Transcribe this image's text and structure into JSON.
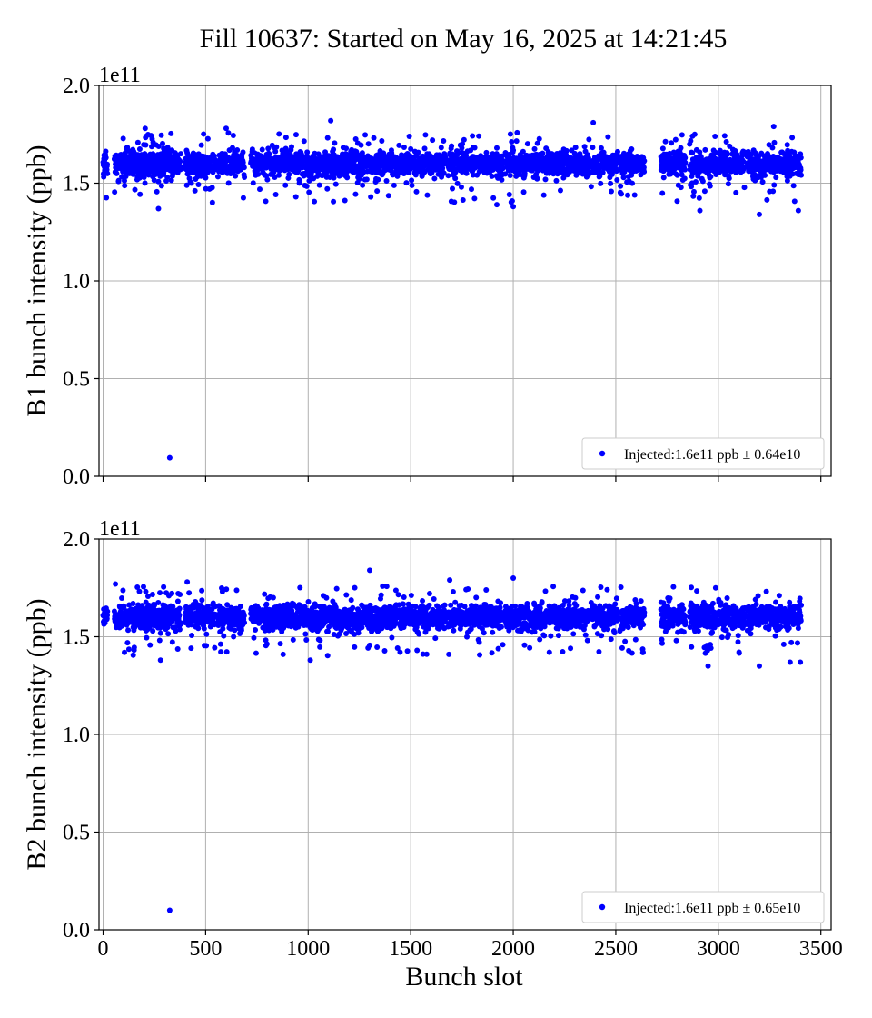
{
  "figure": {
    "title": "Fill 10637: Started on May 16, 2025 at 14:21:45",
    "xlabel": "Bunch slot"
  },
  "colors": {
    "series": "#0000ff",
    "grid": "#b0b0b0"
  },
  "chart_data": [
    {
      "type": "scatter",
      "ylabel": "B1 bunch intensity (ppb)",
      "offset_label": "1e11",
      "xlim": [
        -20,
        3550
      ],
      "ylim": [
        0,
        2
      ],
      "xticks": [
        0,
        500,
        1000,
        1500,
        2000,
        2500,
        3000,
        3500
      ],
      "xtick_labels": [
        "0",
        "500",
        "1000",
        "1500",
        "2000",
        "2500",
        "3000",
        "3500"
      ],
      "yticks": [
        0,
        0.5,
        1,
        1.5,
        2
      ],
      "ytick_labels": [
        "0.0",
        "0.5",
        "1.0",
        "1.5",
        "2.0"
      ],
      "show_xtick_labels": false,
      "grid": true,
      "legend": {
        "placement": "lower-right",
        "label": "Injected:1.6e11 ppb ± 0.64e10"
      },
      "series": [
        {
          "name": "Injected:1.6e11 ppb ± 0.64e10",
          "trains": [
            [
              0,
              22
            ],
            [
              55,
              45
            ],
            [
              100,
              80
            ],
            [
              145,
              75
            ],
            [
              190,
              80
            ],
            [
              235,
              90
            ],
            [
              280,
              100
            ],
            [
              400,
              150
            ],
            [
              560,
              130
            ],
            [
              720,
              140
            ],
            [
              860,
              140
            ],
            [
              1000,
              140
            ],
            [
              1120,
              140
            ],
            [
              1260,
              140
            ],
            [
              1400,
              140
            ],
            [
              1540,
              130
            ],
            [
              1680,
              140
            ],
            [
              1820,
              130
            ],
            [
              1960,
              140
            ],
            [
              2100,
              140
            ],
            [
              2240,
              130
            ],
            [
              2380,
              130
            ],
            [
              2520,
              120
            ],
            [
              2720,
              120
            ],
            [
              2860,
              130
            ],
            [
              3000,
              130
            ],
            [
              3140,
              120
            ],
            [
              3260,
              145
            ]
          ],
          "center": 1.6,
          "spread": 0.032,
          "outliers": [
            [
              325,
              0.095
            ],
            [
              205,
              1.78
            ],
            [
              600,
              1.78
            ],
            [
              1110,
              1.82
            ],
            [
              2390,
              1.81
            ],
            [
              3270,
              1.79
            ],
            [
              3200,
              1.34
            ],
            [
              3390,
              1.36
            ],
            [
              270,
              1.37
            ],
            [
              2910,
              1.36
            ],
            [
              1920,
              1.39
            ],
            [
              2000,
              1.38
            ]
          ]
        }
      ]
    },
    {
      "type": "scatter",
      "ylabel": "B2 bunch intensity (ppb)",
      "offset_label": "1e11",
      "xlim": [
        -20,
        3550
      ],
      "ylim": [
        0,
        2
      ],
      "xticks": [
        0,
        500,
        1000,
        1500,
        2000,
        2500,
        3000,
        3500
      ],
      "xtick_labels": [
        "0",
        "500",
        "1000",
        "1500",
        "2000",
        "2500",
        "3000",
        "3500"
      ],
      "yticks": [
        0,
        0.5,
        1,
        1.5,
        2
      ],
      "ytick_labels": [
        "0.0",
        "0.5",
        "1.0",
        "1.5",
        "2.0"
      ],
      "show_xtick_labels": true,
      "grid": true,
      "legend": {
        "placement": "lower-right",
        "label": "Injected:1.6e11 ppb ± 0.65e10"
      },
      "series": [
        {
          "name": "Injected:1.6e11 ppb ± 0.65e10",
          "trains": [
            [
              0,
              22
            ],
            [
              55,
              45
            ],
            [
              100,
              80
            ],
            [
              145,
              75
            ],
            [
              190,
              80
            ],
            [
              235,
              90
            ],
            [
              280,
              100
            ],
            [
              400,
              150
            ],
            [
              560,
              130
            ],
            [
              720,
              140
            ],
            [
              860,
              140
            ],
            [
              1000,
              140
            ],
            [
              1120,
              140
            ],
            [
              1260,
              140
            ],
            [
              1400,
              140
            ],
            [
              1540,
              130
            ],
            [
              1680,
              140
            ],
            [
              1820,
              130
            ],
            [
              1960,
              140
            ],
            [
              2100,
              140
            ],
            [
              2240,
              130
            ],
            [
              2380,
              130
            ],
            [
              2520,
              120
            ],
            [
              2720,
              120
            ],
            [
              2860,
              130
            ],
            [
              3000,
              130
            ],
            [
              3140,
              120
            ],
            [
              3260,
              145
            ]
          ],
          "center": 1.6,
          "spread": 0.032,
          "outliers": [
            [
              325,
              0.1
            ],
            [
              1300,
              1.84
            ],
            [
              2000,
              1.8
            ],
            [
              1690,
              1.79
            ],
            [
              410,
              1.78
            ],
            [
              60,
              1.77
            ],
            [
              280,
              1.38
            ],
            [
              1010,
              1.38
            ],
            [
              2950,
              1.35
            ],
            [
              3200,
              1.35
            ],
            [
              3350,
              1.37
            ],
            [
              3400,
              1.37
            ]
          ]
        }
      ]
    }
  ]
}
